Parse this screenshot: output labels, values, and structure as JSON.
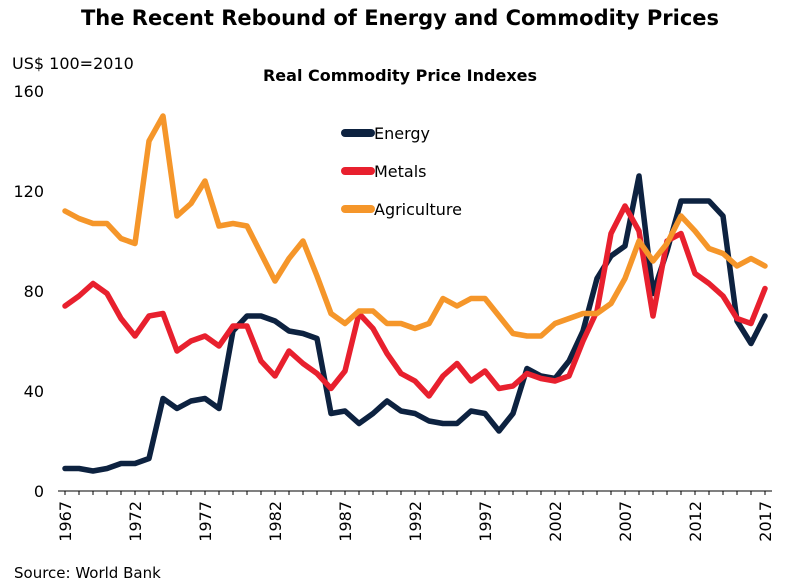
{
  "title": "The Recent Rebound of Energy and Commodity Prices",
  "unit_label": "US$ 100=2010",
  "subtitle": "Real Commodity Price Indexes",
  "source": "Source: World Bank",
  "chart_data": {
    "type": "line",
    "title": "Real Commodity Price Indexes",
    "xlabel": "",
    "ylabel": "US$ 100=2010",
    "x": [
      1967,
      1968,
      1969,
      1970,
      1971,
      1972,
      1973,
      1974,
      1975,
      1976,
      1977,
      1978,
      1979,
      1980,
      1981,
      1982,
      1983,
      1984,
      1985,
      1986,
      1987,
      1988,
      1989,
      1990,
      1991,
      1992,
      1993,
      1994,
      1995,
      1996,
      1997,
      1998,
      1999,
      2000,
      2001,
      2002,
      2003,
      2004,
      2005,
      2006,
      2007,
      2008,
      2009,
      2010,
      2011,
      2012,
      2013,
      2014,
      2015,
      2016,
      2017
    ],
    "x_tick_labels": [
      "1967",
      "1972",
      "1977",
      "1982",
      "1987",
      "1992",
      "1997",
      "2002",
      "2007",
      "2012",
      "2017"
    ],
    "x_ticks": [
      1967,
      1972,
      1977,
      1982,
      1987,
      1992,
      1997,
      2002,
      2007,
      2012,
      2017
    ],
    "y_ticks": [
      0,
      40,
      80,
      120,
      160
    ],
    "y_tick_labels": [
      "0",
      "40",
      "80",
      "120",
      "160"
    ],
    "ylim": [
      0,
      160
    ],
    "xlim": [
      1966.5,
      2017.5
    ],
    "grid": false,
    "legend_position": "top-center",
    "series": [
      {
        "name": "Energy",
        "color": "#0d2240",
        "values": [
          9,
          9,
          8,
          9,
          11,
          11,
          13,
          37,
          33,
          36,
          37,
          33,
          64,
          70,
          70,
          68,
          64,
          63,
          61,
          31,
          32,
          27,
          31,
          36,
          32,
          31,
          28,
          27,
          27,
          32,
          31,
          24,
          31,
          49,
          46,
          45,
          52,
          64,
          85,
          94,
          98,
          126,
          79,
          96,
          116,
          116,
          116,
          110,
          68,
          59,
          70
        ]
      },
      {
        "name": "Metals",
        "color": "#e8202e",
        "values": [
          74,
          78,
          83,
          79,
          69,
          62,
          70,
          71,
          56,
          60,
          62,
          58,
          66,
          66,
          52,
          46,
          56,
          51,
          47,
          41,
          48,
          71,
          65,
          55,
          47,
          44,
          38,
          46,
          51,
          44,
          48,
          41,
          42,
          47,
          45,
          44,
          46,
          60,
          72,
          103,
          114,
          104,
          70,
          100,
          103,
          87,
          83,
          78,
          69,
          67,
          81
        ]
      },
      {
        "name": "Agriculture",
        "color": "#f5962a",
        "values": [
          112,
          109,
          107,
          107,
          101,
          99,
          140,
          150,
          110,
          115,
          124,
          106,
          107,
          106,
          95,
          84,
          93,
          100,
          86,
          71,
          67,
          72,
          72,
          67,
          67,
          65,
          67,
          77,
          74,
          77,
          77,
          70,
          63,
          62,
          62,
          67,
          69,
          71,
          71,
          75,
          85,
          100,
          92,
          99,
          110,
          104,
          97,
          95,
          90,
          93,
          90
        ]
      }
    ]
  }
}
